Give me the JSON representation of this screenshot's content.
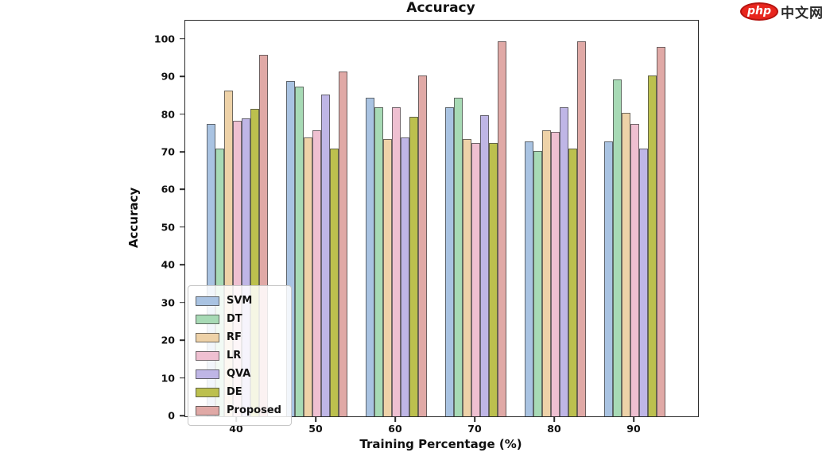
{
  "logo": {
    "badge": "php",
    "text": "中文网"
  },
  "chart_data": {
    "type": "bar",
    "title": "Accuracy",
    "xlabel": "Training Percentage (%)",
    "ylabel": "Accuracy",
    "categories": [
      "40",
      "50",
      "60",
      "70",
      "80",
      "90"
    ],
    "series": [
      {
        "name": "SVM",
        "color": "#a9c3e2",
        "values": [
          77.5,
          89,
          84.5,
          82,
          73,
          73
        ]
      },
      {
        "name": "DT",
        "color": "#a7dab5",
        "values": [
          71,
          87.5,
          82,
          84.5,
          70.5,
          89.5
        ]
      },
      {
        "name": "RF",
        "color": "#eed2a8",
        "values": [
          86.5,
          74,
          73.5,
          73.5,
          76,
          80.5
        ]
      },
      {
        "name": "LR",
        "color": "#efc0d1",
        "values": [
          78.5,
          76,
          82,
          72.5,
          75.5,
          77.5
        ]
      },
      {
        "name": "QVA",
        "color": "#bfb6e6",
        "values": [
          79,
          85.5,
          74,
          80,
          82,
          71
        ]
      },
      {
        "name": "DE",
        "color": "#bcc04e",
        "values": [
          81.5,
          71,
          79.5,
          72.5,
          71,
          90.5
        ]
      },
      {
        "name": "Proposed",
        "color": "#e0a9a6",
        "values": [
          96,
          91.5,
          90.5,
          99.5,
          99.5,
          98
        ]
      }
    ],
    "yticks": [
      0,
      10,
      20,
      30,
      40,
      50,
      60,
      70,
      80,
      90,
      100
    ],
    "ylim": [
      0,
      105
    ],
    "grid": false,
    "legend_position": "lower left",
    "bar_edge_color": "#6e6e6e"
  }
}
